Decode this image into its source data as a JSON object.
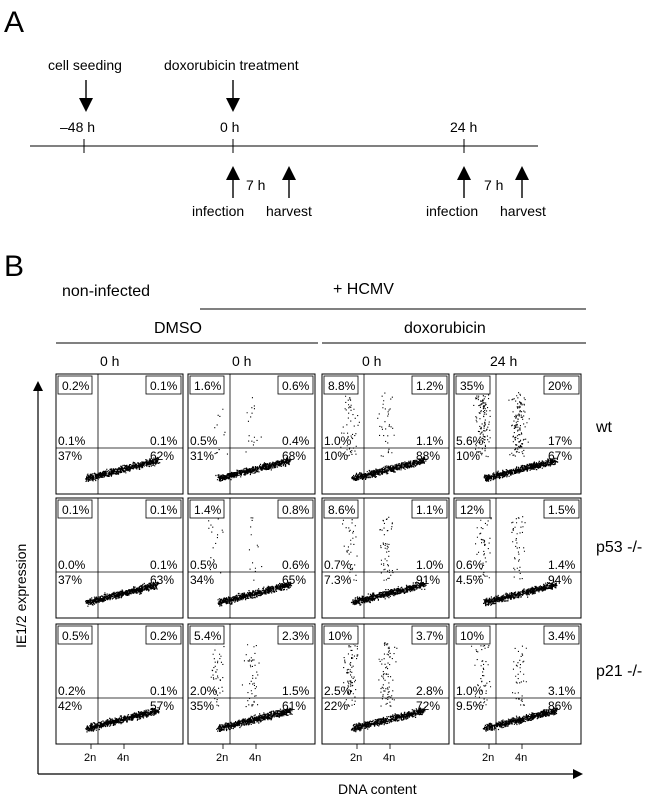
{
  "panel_a": {
    "letter": "A",
    "top_labels": {
      "seeding": "cell seeding",
      "treatment": "doxorubicin treatment"
    },
    "times": {
      "t_minus48": "–48 h",
      "t0": "0 h",
      "t24": "24 h"
    },
    "events": {
      "infection": "infection",
      "harvest": "harvest",
      "interval": "7 h"
    }
  },
  "panel_b": {
    "letter": "B",
    "header": {
      "non_infected": "non-infected",
      "hcmv": "+ HCMV",
      "dmso": "DMSO",
      "doxorubicin": "doxorubicin",
      "cols": [
        "0 h",
        "0 h",
        "0 h",
        "24 h"
      ]
    },
    "rows": [
      "wt",
      "p53 -/-",
      "p21 -/-"
    ],
    "y_axis_label": "IE1/2 expression",
    "x_axis_label": "DNA content",
    "x_ticks": [
      "2n",
      "4n"
    ],
    "plots": [
      [
        {
          "tl": "0.2%",
          "tr": "0.1%",
          "ml": "0.1%",
          "mr": "0.1%",
          "bl": "37%",
          "br": "62%",
          "infected": 0
        },
        {
          "tl": "1.6%",
          "tr": "0.6%",
          "ml": "0.5%",
          "mr": "0.4%",
          "bl": "31%",
          "br": "68%",
          "infected": 1
        },
        {
          "tl": "8.8%",
          "tr": "1.2%",
          "ml": "1.0%",
          "mr": "1.1%",
          "bl": "10%",
          "br": "88%",
          "infected": 2
        },
        {
          "tl": "35%",
          "tr": "20%",
          "ml": "5.6%",
          "mr": "17%",
          "bl": "10%",
          "br": "67%",
          "infected": 4
        }
      ],
      [
        {
          "tl": "0.1%",
          "tr": "0.1%",
          "ml": "0.0%",
          "mr": "0.1%",
          "bl": "37%",
          "br": "63%",
          "infected": 0
        },
        {
          "tl": "1.4%",
          "tr": "0.8%",
          "ml": "0.5%",
          "mr": "0.6%",
          "bl": "34%",
          "br": "65%",
          "infected": 1
        },
        {
          "tl": "8.6%",
          "tr": "1.1%",
          "ml": "0.7%",
          "mr": "1.0%",
          "bl": "7.3%",
          "br": "91%",
          "infected": 2
        },
        {
          "tl": "12%",
          "tr": "1.5%",
          "ml": "0.6%",
          "mr": "1.4%",
          "bl": "4.5%",
          "br": "94%",
          "infected": 2
        }
      ],
      [
        {
          "tl": "0.5%",
          "tr": "0.2%",
          "ml": "0.2%",
          "mr": "0.1%",
          "bl": "42%",
          "br": "57%",
          "infected": 0
        },
        {
          "tl": "5.4%",
          "tr": "2.3%",
          "ml": "2.0%",
          "mr": "1.5%",
          "bl": "35%",
          "br": "61%",
          "infected": 2
        },
        {
          "tl": "10%",
          "tr": "3.7%",
          "ml": "2.5%",
          "mr": "2.8%",
          "bl": "22%",
          "br": "72%",
          "infected": 3
        },
        {
          "tl": "10%",
          "tr": "3.4%",
          "ml": "1.0%",
          "mr": "3.1%",
          "bl": "9.5%",
          "br": "86%",
          "infected": 2
        }
      ]
    ]
  }
}
